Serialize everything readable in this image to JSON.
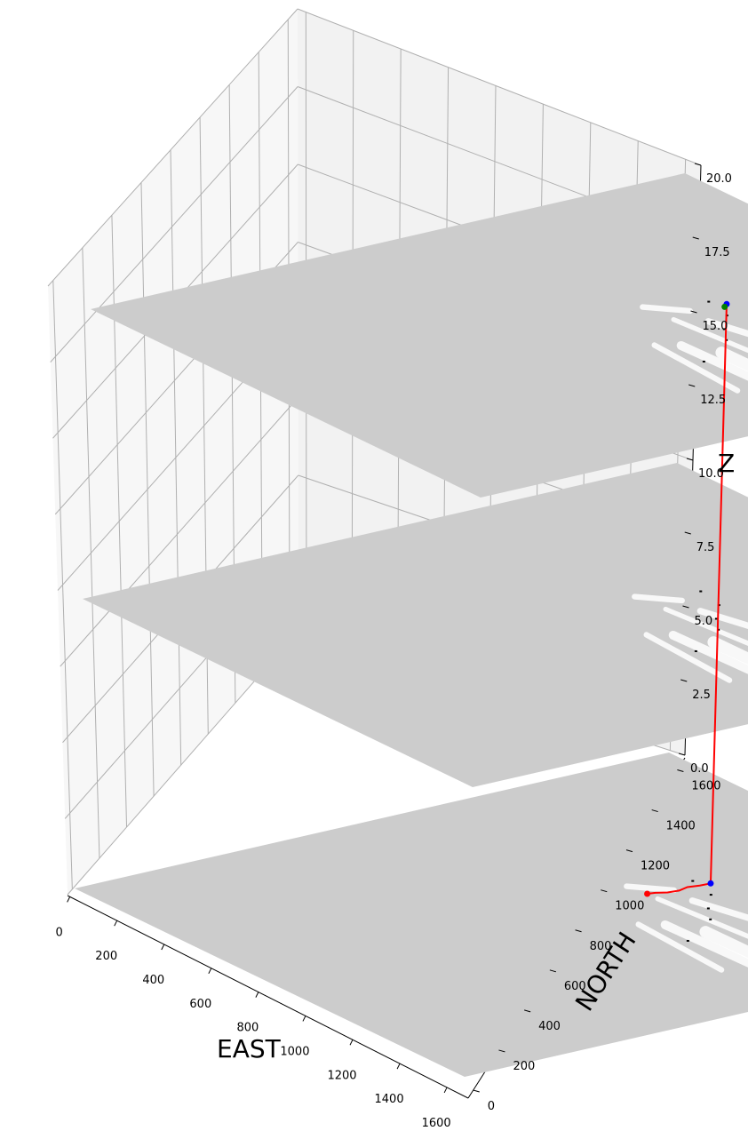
{
  "chart_data": {
    "type": "3d-line",
    "xlabel": "EAST",
    "ylabel": "NORTH",
    "zlabel": "Z",
    "xlim": [
      0,
      1700
    ],
    "ylim": [
      0,
      1700
    ],
    "zlim": [
      0,
      20
    ],
    "x_ticks": [
      0,
      200,
      400,
      600,
      800,
      1000,
      1200,
      1400,
      1600
    ],
    "y_ticks": [
      0,
      200,
      400,
      600,
      800,
      1000,
      1200,
      1400,
      1600
    ],
    "z_ticks": [
      "0.0",
      "2.5",
      "5.0",
      "7.5",
      "10.0",
      "12.5",
      "15.0",
      "17.5",
      "20.0"
    ],
    "grid": true,
    "map_layers_z": [
      0,
      10,
      20
    ],
    "path": {
      "color": "#ff0000",
      "points": [
        {
          "x": 835,
          "y": 1090,
          "z": 0
        },
        {
          "x": 840,
          "y": 1110,
          "z": 0
        },
        {
          "x": 855,
          "y": 1135,
          "z": 0
        },
        {
          "x": 860,
          "y": 1165,
          "z": 0
        },
        {
          "x": 850,
          "y": 1195,
          "z": 0
        },
        {
          "x": 858,
          "y": 1225,
          "z": 0
        },
        {
          "x": 860,
          "y": 1255,
          "z": 0
        },
        {
          "x": 860,
          "y": 1255,
          "z": 20
        },
        {
          "x": 866,
          "y": 1250,
          "z": 20
        },
        {
          "x": 874,
          "y": 1240,
          "z": 20
        }
      ]
    },
    "markers": [
      {
        "name": "start",
        "color": "#ff0000",
        "x": 835,
        "y": 1090,
        "z": 0
      },
      {
        "name": "transition-bottom",
        "color": "#0000ff",
        "x": 860,
        "y": 1255,
        "z": 0
      },
      {
        "name": "transition-top",
        "color": "#0000ff",
        "x": 860,
        "y": 1255,
        "z": 20
      },
      {
        "name": "goal",
        "color": "#008000",
        "x": 874,
        "y": 1240,
        "z": 20
      }
    ]
  },
  "colors": {
    "plane": "#cccccc",
    "pane_left": "#f7f7f7",
    "pane_back": "#f2f2f2",
    "grid": "#b0b0b0",
    "map_free": "#ffffff",
    "map_obstacle": "#000000"
  }
}
